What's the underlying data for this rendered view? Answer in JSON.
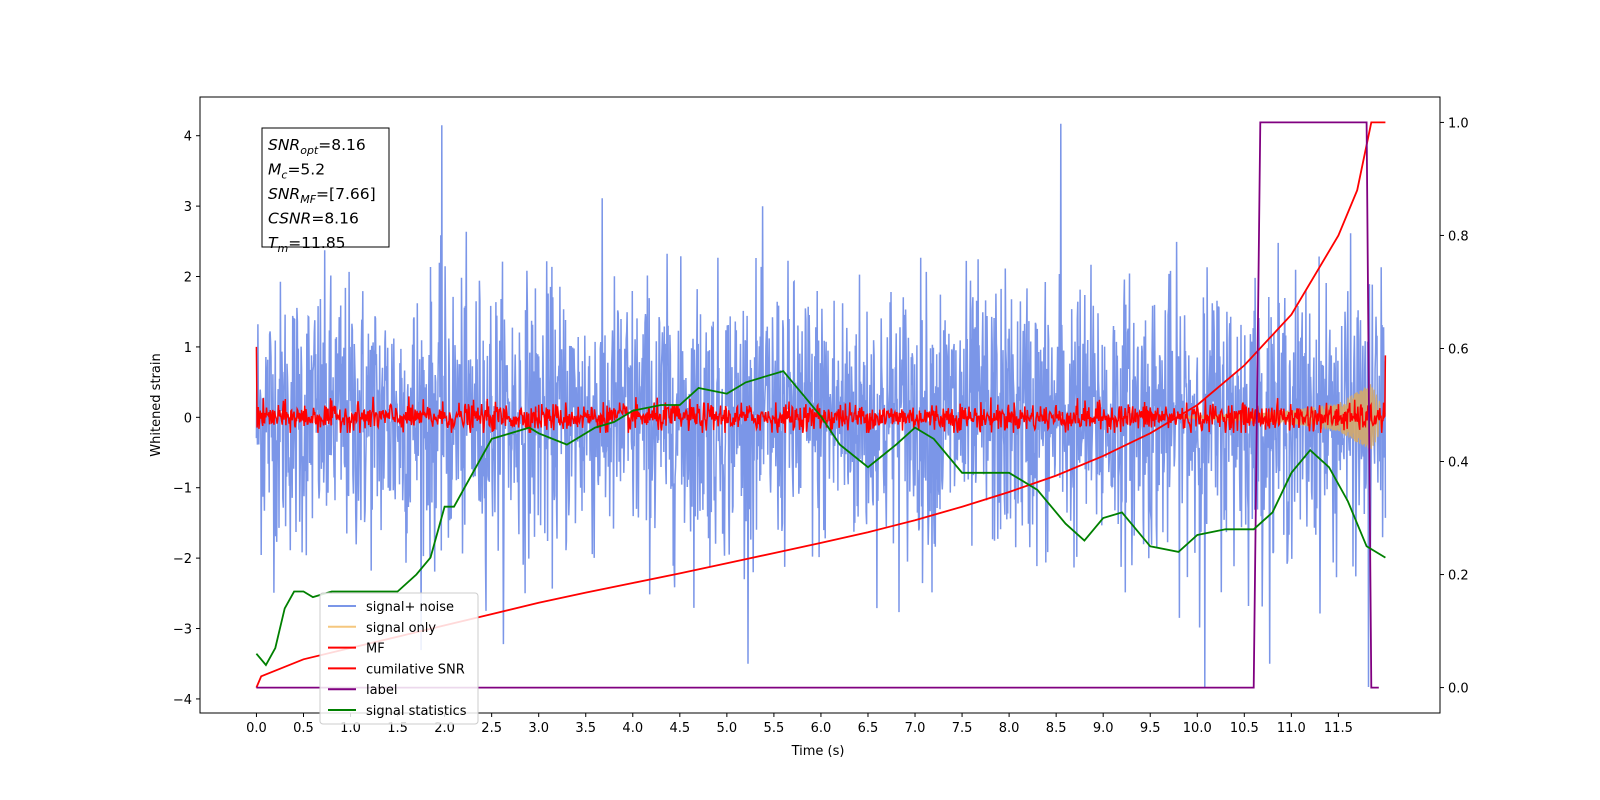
{
  "chart_data": {
    "type": "line",
    "xlabel": "Time (s)",
    "ylabel": "Whitened strain",
    "xlim": [
      -0.6,
      12.58
    ],
    "ylim": [
      -4.2,
      4.55
    ],
    "ylim_right": [
      -0.045,
      1.045
    ],
    "x_ticks": [
      "0.0",
      "0.5",
      "1.0",
      "1.5",
      "2.0",
      "2.5",
      "3.0",
      "3.5",
      "4.0",
      "4.5",
      "5.0",
      "5.5",
      "6.0",
      "6.5",
      "7.0",
      "7.5",
      "8.0",
      "8.5",
      "9.0",
      "9.5",
      "10.0",
      "10.5",
      "11.0",
      "11.5"
    ],
    "y_ticks": [
      "4",
      "3",
      "2",
      "1",
      "0",
      "−1",
      "−2",
      "−3",
      "−4"
    ],
    "y_ticks_right": [
      "1.0",
      "0.8",
      "0.6",
      "0.4",
      "0.2",
      "0.0"
    ],
    "grid": false,
    "legend_position": "lower-left",
    "annotation": [
      {
        "base": "SNR",
        "sub": "opt",
        "value": "=8.16"
      },
      {
        "base": "M",
        "sub": "c",
        "value": "=5.2"
      },
      {
        "base": "SNR",
        "sub": "MF",
        "value": "=[7.66]"
      },
      {
        "base": "CSNR",
        "sub": "",
        "value": "=8.16"
      },
      {
        "base": "T",
        "sub": "m",
        "value": "=11.85"
      }
    ],
    "series": [
      {
        "name": "signal+ noise",
        "color": "#7b96e8",
        "axis": "left",
        "style": "dense noise, amplitude approx ±1.5 with peaks to 4.15 and -3.85",
        "x_range": [
          0.0,
          12.0
        ],
        "notable_peaks": [
          [
            1.97,
            4.15
          ],
          [
            8.55,
            4.17
          ],
          [
            10.08,
            -3.83
          ],
          [
            11.82,
            -3.83
          ]
        ]
      },
      {
        "name": "signal only",
        "color": "#f5c77e",
        "axis": "left",
        "style": "chirp envelope growing near merger",
        "envelope": {
          "x": [
            10.0,
            10.5,
            11.0,
            11.5,
            11.85,
            12.0
          ],
          "y": [
            0.02,
            0.05,
            0.1,
            0.2,
            0.48,
            0.05
          ]
        }
      },
      {
        "name": "MF",
        "color": "#ff0000",
        "axis": "left",
        "style": "noise band approx ±0.2 around 0, initial spike to 1.0 at t=0, ends at 0.9"
      },
      {
        "name": "cumilative SNR",
        "color": "#ff0000",
        "axis": "right",
        "x": [
          0.0,
          0.05,
          0.5,
          1.0,
          1.5,
          2.0,
          2.5,
          3.0,
          3.5,
          4.0,
          4.5,
          5.0,
          5.5,
          6.0,
          6.5,
          7.0,
          7.5,
          8.0,
          8.5,
          9.0,
          9.5,
          10.0,
          10.5,
          11.0,
          11.5,
          11.7,
          11.85,
          12.0
        ],
        "values": [
          0.0,
          0.02,
          0.05,
          0.07,
          0.09,
          0.11,
          0.13,
          0.15,
          0.168,
          0.185,
          0.202,
          0.22,
          0.238,
          0.256,
          0.275,
          0.296,
          0.32,
          0.346,
          0.375,
          0.41,
          0.45,
          0.5,
          0.57,
          0.66,
          0.8,
          0.88,
          1.0,
          1.0
        ]
      },
      {
        "name": "label",
        "color": "#800080",
        "axis": "right",
        "x": [
          0.0,
          10.6,
          10.67,
          11.8,
          11.85,
          11.93
        ],
        "values": [
          0.0,
          0.0,
          1.0,
          1.0,
          0.0,
          0.0
        ]
      },
      {
        "name": "signal statistics",
        "color": "#008000",
        "axis": "right",
        "x": [
          0.0,
          0.1,
          0.2,
          0.3,
          0.4,
          0.5,
          0.6,
          0.8,
          1.0,
          1.2,
          1.5,
          1.7,
          1.85,
          2.0,
          2.1,
          2.3,
          2.5,
          2.7,
          2.9,
          3.0,
          3.3,
          3.6,
          3.8,
          4.0,
          4.3,
          4.5,
          4.7,
          5.0,
          5.2,
          5.4,
          5.6,
          5.8,
          6.0,
          6.2,
          6.5,
          6.8,
          7.0,
          7.2,
          7.5,
          7.8,
          8.0,
          8.3,
          8.6,
          8.8,
          9.0,
          9.2,
          9.5,
          9.8,
          10.0,
          10.3,
          10.6,
          10.8,
          11.0,
          11.2,
          11.4,
          11.6,
          11.8,
          12.0
        ],
        "values": [
          0.06,
          0.04,
          0.07,
          0.14,
          0.17,
          0.17,
          0.16,
          0.17,
          0.17,
          0.17,
          0.17,
          0.2,
          0.23,
          0.32,
          0.32,
          0.38,
          0.44,
          0.45,
          0.46,
          0.45,
          0.43,
          0.46,
          0.47,
          0.49,
          0.5,
          0.5,
          0.53,
          0.52,
          0.54,
          0.55,
          0.56,
          0.52,
          0.48,
          0.43,
          0.39,
          0.43,
          0.46,
          0.44,
          0.38,
          0.38,
          0.38,
          0.35,
          0.29,
          0.26,
          0.3,
          0.31,
          0.25,
          0.24,
          0.27,
          0.28,
          0.28,
          0.31,
          0.38,
          0.42,
          0.39,
          0.33,
          0.25,
          0.23
        ]
      }
    ]
  }
}
